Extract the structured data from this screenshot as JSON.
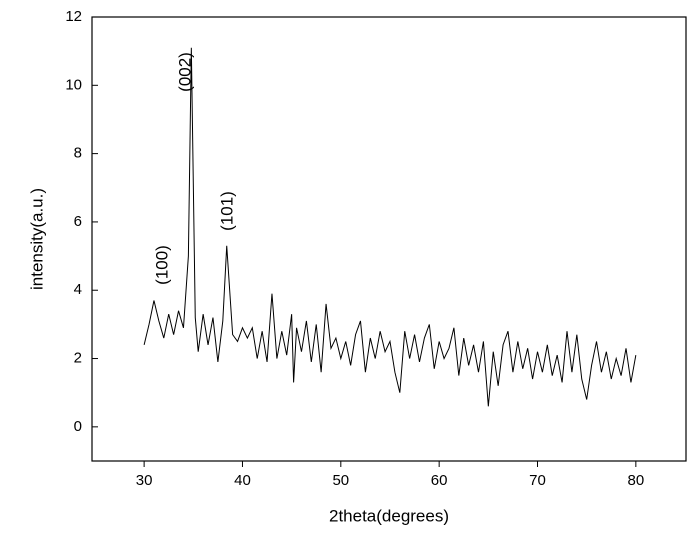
{
  "chart_data": {
    "type": "line",
    "x_label": "2theta(degrees)",
    "y_label": "intensity(a.u.)",
    "color": "#000000",
    "annotations": [
      "(100)",
      "(002)",
      "(101)"
    ],
    "xlim": [
      24.7,
      85.1
    ],
    "ylim": [
      -1,
      12
    ],
    "xticks": [
      30,
      40,
      50,
      60,
      70,
      80
    ],
    "yticks": [
      0,
      2,
      4,
      6,
      8,
      10,
      12
    ],
    "x": [
      30,
      30.5,
      31,
      31.5,
      32,
      32.5,
      33,
      33.5,
      34,
      34.5,
      34.8,
      35.2,
      35.5,
      36,
      36.5,
      37,
      37.5,
      38,
      38.4,
      39,
      39.5,
      40,
      40.5,
      41,
      41.5,
      42,
      42.5,
      43,
      43.5,
      44,
      44.5,
      45,
      45.2,
      45.5,
      46,
      46.5,
      47,
      47.5,
      48,
      48.5,
      49,
      49.5,
      50,
      50.5,
      51,
      51.5,
      52,
      52.5,
      53,
      53.5,
      54,
      54.5,
      55,
      55.5,
      56,
      56.5,
      57,
      57.5,
      58,
      58.5,
      59,
      59.5,
      60,
      60.5,
      61,
      61.5,
      62,
      62.5,
      63,
      63.5,
      64,
      64.5,
      65,
      65.5,
      66,
      66.5,
      67,
      67.5,
      68,
      68.5,
      69,
      69.5,
      70,
      70.5,
      71,
      71.5,
      72,
      72.5,
      73,
      73.5,
      74,
      74.5,
      75,
      75.5,
      76,
      76.5,
      77,
      77.5,
      78,
      78.5,
      79,
      79.5,
      80
    ],
    "values": [
      2.4,
      3.0,
      3.7,
      3.1,
      2.6,
      3.3,
      2.7,
      3.4,
      2.9,
      5.0,
      11.1,
      3.2,
      2.2,
      3.3,
      2.4,
      3.2,
      1.9,
      3.1,
      5.3,
      2.7,
      2.5,
      2.9,
      2.6,
      2.9,
      2.0,
      2.8,
      1.9,
      3.9,
      2.0,
      2.8,
      2.1,
      3.3,
      1.3,
      2.9,
      2.2,
      3.1,
      1.9,
      3.0,
      1.6,
      3.6,
      2.3,
      2.6,
      2.0,
      2.5,
      1.8,
      2.7,
      3.1,
      1.6,
      2.6,
      2.0,
      2.8,
      2.2,
      2.5,
      1.6,
      1.0,
      2.8,
      2.0,
      2.7,
      1.9,
      2.6,
      3.0,
      1.7,
      2.5,
      2.0,
      2.3,
      2.9,
      1.5,
      2.6,
      1.8,
      2.4,
      1.6,
      2.5,
      0.6,
      2.2,
      1.2,
      2.4,
      2.8,
      1.6,
      2.5,
      1.7,
      2.3,
      1.4,
      2.2,
      1.6,
      2.4,
      1.5,
      2.1,
      1.3,
      2.8,
      1.6,
      2.7,
      1.4,
      0.8,
      1.8,
      2.5,
      1.6,
      2.2,
      1.4,
      2.0,
      1.5,
      2.3,
      1.3,
      2.1
    ]
  }
}
